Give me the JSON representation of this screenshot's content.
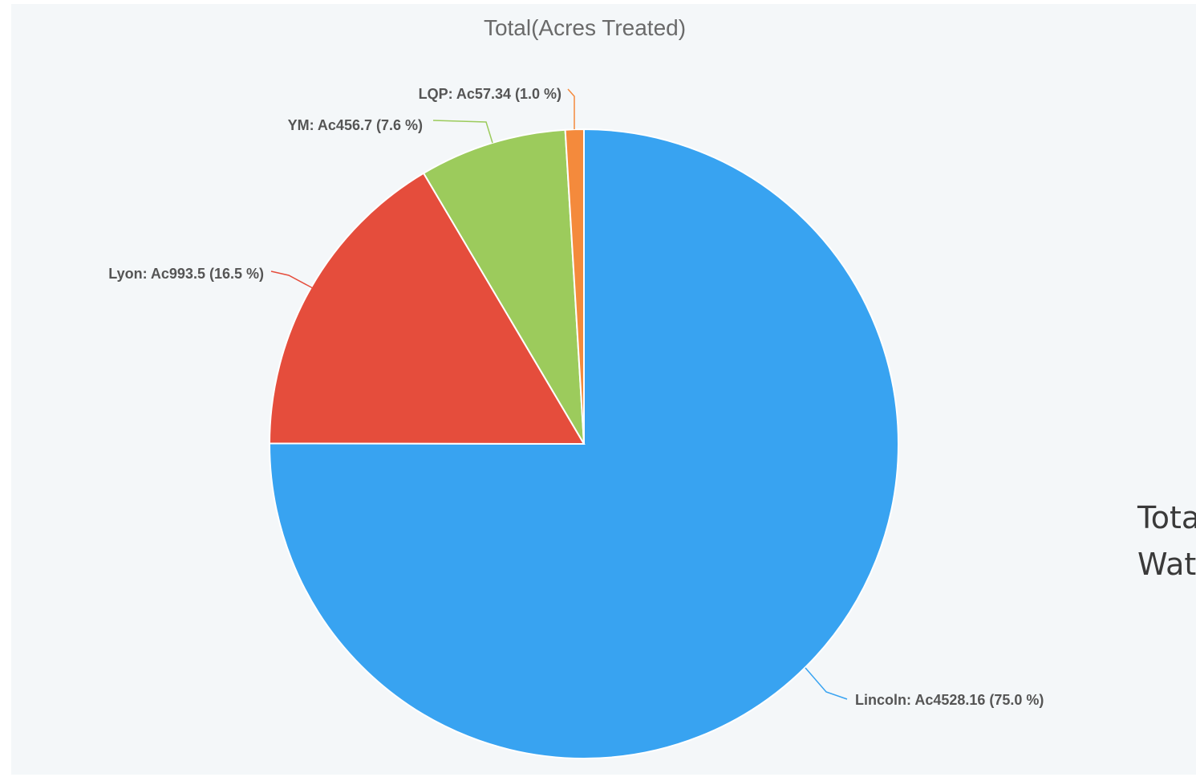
{
  "chart_data": {
    "type": "pie",
    "title": "Total(Acres Treated)",
    "slices": [
      {
        "name": "Lincoln",
        "value": 4528.16,
        "percent": 75.0,
        "label": "Lincoln: Ac4528.16 (75.0 %)",
        "color": "#38a3f1"
      },
      {
        "name": "Lyon",
        "value": 993.5,
        "percent": 16.5,
        "label": "Lyon: Ac993.5 (16.5 %)",
        "color": "#e54d3c"
      },
      {
        "name": "YM",
        "value": 456.7,
        "percent": 7.6,
        "label": "YM: Ac456.7 (7.6 %)",
        "color": "#9ccb5c"
      },
      {
        "name": "LQP",
        "value": 57.34,
        "percent": 1.0,
        "label": "LQP: Ac57.34 (1.0 %)",
        "color": "#f48a3c"
      }
    ],
    "start_angle": "top",
    "direction": "clockwise",
    "legend": "none"
  },
  "side_text": {
    "line1": "Tota",
    "line2": "Wat"
  },
  "colors": {
    "panel_background": "#f4f7f9",
    "label_text": "#555555",
    "title_text": "#6a6a6a"
  }
}
